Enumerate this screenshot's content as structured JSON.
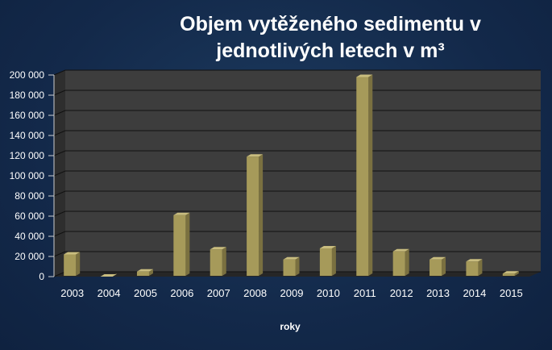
{
  "chart_data": {
    "type": "bar",
    "title": "Objem vytěženého sedimentu v jednotlivých letech v m³",
    "xlabel": "roky",
    "ylabel": "",
    "ylim": [
      0,
      200000
    ],
    "yticks": [
      "0",
      "20 000",
      "40 000",
      "60 000",
      "80 000",
      "100 000",
      "120 000",
      "140 000",
      "160 000",
      "180 000",
      "200 000"
    ],
    "categories": [
      "2003",
      "2004",
      "2005",
      "2006",
      "2007",
      "2008",
      "2009",
      "2010",
      "2011",
      "2012",
      "2013",
      "2014",
      "2015"
    ],
    "values": [
      22000,
      0,
      5000,
      61000,
      27000,
      119000,
      17000,
      28000,
      198000,
      25000,
      17000,
      15000,
      3000
    ],
    "grid": true,
    "legend": "none",
    "colors": {
      "bar_front": "#a69a5a",
      "bar_side": "#7a7040",
      "bar_top": "#c9bd7f",
      "plot_back": "#3d3d3d",
      "floor": "#262626"
    }
  }
}
